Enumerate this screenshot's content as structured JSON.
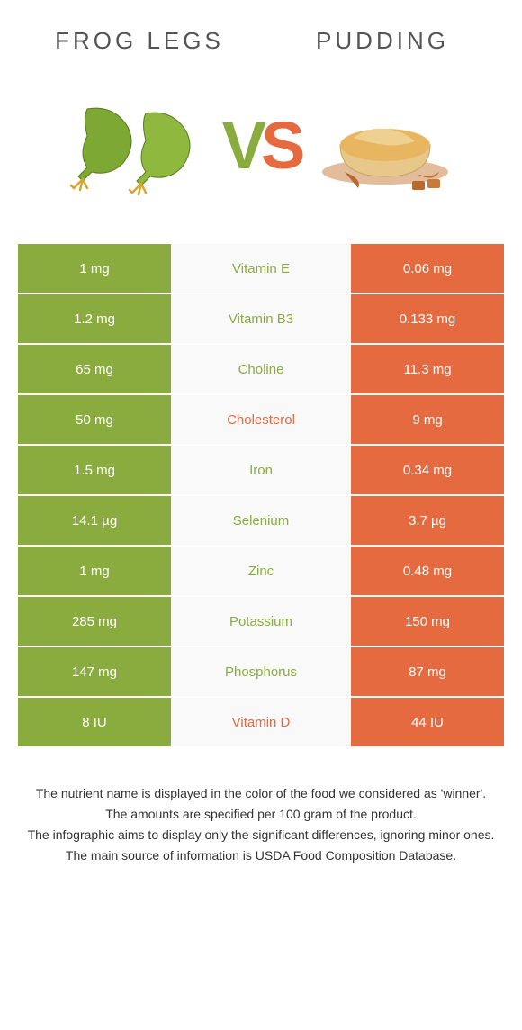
{
  "titles": {
    "left": "Frog legs",
    "right": "Pudding"
  },
  "colors": {
    "left_bg": "#8aac3f",
    "right_bg": "#e56a40",
    "left_text": "#8aac3f",
    "right_text": "#e56a40",
    "row_mid_bg": "#f9f9f9",
    "body_bg": "#ffffff"
  },
  "vs": {
    "v": "V",
    "s": "S"
  },
  "rows": [
    {
      "left": "1 mg",
      "mid": "Vitamin E",
      "right": "0.06 mg",
      "winner": "left"
    },
    {
      "left": "1.2 mg",
      "mid": "Vitamin B3",
      "right": "0.133 mg",
      "winner": "left"
    },
    {
      "left": "65 mg",
      "mid": "Choline",
      "right": "11.3 mg",
      "winner": "left"
    },
    {
      "left": "50 mg",
      "mid": "Cholesterol",
      "right": "9 mg",
      "winner": "right"
    },
    {
      "left": "1.5 mg",
      "mid": "Iron",
      "right": "0.34 mg",
      "winner": "left"
    },
    {
      "left": "14.1 µg",
      "mid": "Selenium",
      "right": "3.7 µg",
      "winner": "left"
    },
    {
      "left": "1 mg",
      "mid": "Zinc",
      "right": "0.48 mg",
      "winner": "left"
    },
    {
      "left": "285 mg",
      "mid": "Potassium",
      "right": "150 mg",
      "winner": "left"
    },
    {
      "left": "147 mg",
      "mid": "Phosphorus",
      "right": "87 mg",
      "winner": "left"
    },
    {
      "left": "8 IU",
      "mid": "Vitamin D",
      "right": "44 IU",
      "winner": "right"
    }
  ],
  "footer": {
    "line1": "The nutrient name is displayed in the color of the food we considered as 'winner'.",
    "line2": "The amounts are specified per 100 gram of the product.",
    "line3": "The infographic aims to display only the significant differences, ignoring minor ones.",
    "line4": "The main source of information is USDA Food Composition Database."
  }
}
